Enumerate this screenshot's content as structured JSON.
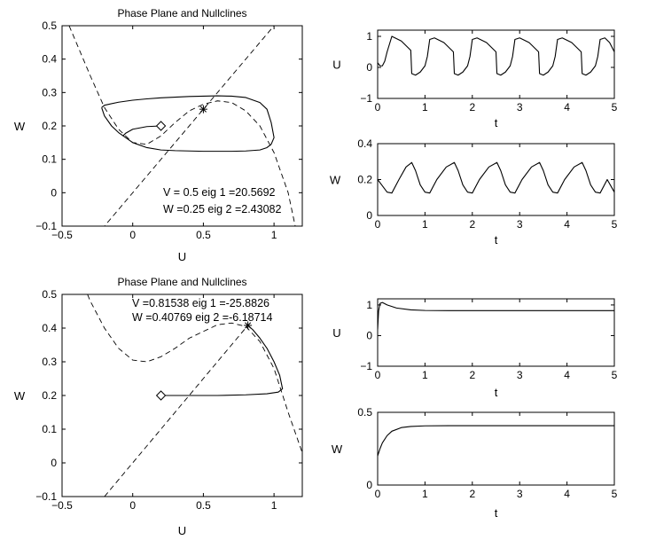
{
  "chart_data": [
    {
      "type": "line",
      "panel": "phase-top",
      "title": "Phase Plane and Nullclines",
      "xlabel": "U",
      "ylabel": "W",
      "xlim": [
        -0.5,
        1.2
      ],
      "ylim": [
        -0.1,
        0.5
      ],
      "xticks": [
        -0.5,
        0,
        0.5,
        1
      ],
      "yticks": [
        -0.1,
        0,
        0.1,
        0.2,
        0.3,
        0.4,
        0.5
      ],
      "annotation": [
        "V = 0.5  eig 1 =20.5692",
        "W =0.25  eig 2 =2.43082"
      ],
      "equilibrium": [
        0.5,
        0.25
      ],
      "start": [
        0.2,
        0.2
      ],
      "series": [
        {
          "style": "dashed",
          "x": [
            -0.45,
            -0.4,
            -0.3,
            -0.2,
            -0.1,
            0.0,
            0.1,
            0.2,
            0.3,
            0.4,
            0.5,
            0.6,
            0.7,
            0.8,
            0.9,
            1.0,
            1.1,
            1.15
          ],
          "y": [
            0.5,
            0.45,
            0.35,
            0.255,
            0.19,
            0.15,
            0.145,
            0.17,
            0.21,
            0.245,
            0.265,
            0.275,
            0.27,
            0.245,
            0.2,
            0.12,
            0.0,
            -0.1
          ]
        },
        {
          "style": "dashed",
          "x": [
            -0.22,
            1.0
          ],
          "y": [
            -0.11,
            0.5
          ]
        },
        {
          "style": "solid",
          "x": [
            -0.22,
            -0.2,
            -0.1,
            0.0,
            0.1,
            0.2,
            0.3,
            0.4,
            0.5,
            0.6,
            0.7,
            0.8,
            0.9,
            0.95,
            0.98,
            1.0,
            0.98,
            0.95,
            0.9,
            0.8,
            0.7,
            0.6,
            0.5,
            0.4,
            0.3,
            0.2,
            0.1,
            0.0,
            -0.1,
            -0.15,
            -0.2,
            -0.22
          ],
          "y": [
            0.255,
            0.262,
            0.271,
            0.277,
            0.281,
            0.284,
            0.286,
            0.288,
            0.289,
            0.29,
            0.289,
            0.285,
            0.27,
            0.25,
            0.21,
            0.165,
            0.145,
            0.135,
            0.128,
            0.125,
            0.124,
            0.124,
            0.124,
            0.125,
            0.126,
            0.128,
            0.135,
            0.15,
            0.18,
            0.2,
            0.23,
            0.255
          ]
        },
        {
          "style": "solid",
          "x": [
            0.2,
            0.1,
            0.0,
            -0.05,
            -0.07
          ],
          "y": [
            0.2,
            0.198,
            0.19,
            0.178,
            0.17
          ]
        }
      ]
    },
    {
      "type": "line",
      "panel": "u-top",
      "xlabel": "t",
      "ylabel": "U",
      "xlim": [
        0,
        5
      ],
      "ylim": [
        -1,
        1.2
      ],
      "xticks": [
        0,
        1,
        2,
        3,
        4,
        5
      ],
      "yticks": [
        -1,
        0,
        1
      ],
      "series": [
        {
          "style": "solid",
          "x": [
            0,
            0.05,
            0.1,
            0.15,
            0.2,
            0.3,
            0.5,
            0.7,
            0.72,
            0.8,
            0.9,
            1.0,
            1.05,
            1.1,
            1.2,
            1.4,
            1.6,
            1.62,
            1.7,
            1.8,
            1.9,
            1.95,
            2.0,
            2.1,
            2.3,
            2.5,
            2.52,
            2.6,
            2.7,
            2.8,
            2.85,
            2.9,
            3.0,
            3.2,
            3.4,
            3.42,
            3.5,
            3.6,
            3.7,
            3.75,
            3.8,
            3.9,
            4.1,
            4.3,
            4.32,
            4.4,
            4.5,
            4.6,
            4.65,
            4.7,
            4.8,
            4.9,
            5.0
          ],
          "y": [
            0.15,
            0.05,
            0.05,
            0.2,
            0.5,
            1.0,
            0.85,
            0.55,
            -0.2,
            -0.25,
            -0.15,
            0.05,
            0.35,
            0.9,
            0.95,
            0.8,
            0.5,
            -0.2,
            -0.25,
            -0.15,
            0.05,
            0.35,
            0.9,
            0.95,
            0.8,
            0.5,
            -0.2,
            -0.25,
            -0.15,
            0.05,
            0.35,
            0.9,
            0.95,
            0.8,
            0.5,
            -0.2,
            -0.25,
            -0.15,
            0.05,
            0.35,
            0.9,
            0.95,
            0.8,
            0.5,
            -0.2,
            -0.25,
            -0.15,
            0.05,
            0.35,
            0.9,
            0.95,
            0.8,
            0.5
          ]
        }
      ]
    },
    {
      "type": "line",
      "panel": "w-top",
      "xlabel": "t",
      "ylabel": "W",
      "xlim": [
        0,
        5
      ],
      "ylim": [
        0,
        0.4
      ],
      "xticks": [
        0,
        1,
        2,
        3,
        4,
        5
      ],
      "yticks": [
        0,
        0.2,
        0.4
      ],
      "series": [
        {
          "style": "solid",
          "x": [
            0,
            0.1,
            0.2,
            0.3,
            0.45,
            0.6,
            0.72,
            0.8,
            0.9,
            1.0,
            1.1,
            1.25,
            1.45,
            1.62,
            1.7,
            1.8,
            1.9,
            2.0,
            2.15,
            2.35,
            2.52,
            2.6,
            2.7,
            2.8,
            2.9,
            3.05,
            3.25,
            3.42,
            3.5,
            3.6,
            3.7,
            3.8,
            3.95,
            4.15,
            4.32,
            4.4,
            4.5,
            4.6,
            4.7,
            4.85,
            5.0
          ],
          "y": [
            0.2,
            0.165,
            0.13,
            0.125,
            0.2,
            0.27,
            0.295,
            0.25,
            0.17,
            0.13,
            0.125,
            0.2,
            0.27,
            0.295,
            0.25,
            0.17,
            0.13,
            0.125,
            0.2,
            0.27,
            0.295,
            0.25,
            0.17,
            0.13,
            0.125,
            0.2,
            0.27,
            0.295,
            0.25,
            0.17,
            0.13,
            0.125,
            0.2,
            0.27,
            0.295,
            0.25,
            0.17,
            0.13,
            0.125,
            0.2,
            0.13
          ]
        }
      ]
    },
    {
      "type": "line",
      "panel": "phase-bottom",
      "title": "Phase Plane and Nullclines",
      "xlabel": "U",
      "ylabel": "W",
      "xlim": [
        -0.5,
        1.2
      ],
      "ylim": [
        -0.1,
        0.5
      ],
      "xticks": [
        -0.5,
        0,
        0.5,
        1
      ],
      "yticks": [
        -0.1,
        0,
        0.1,
        0.2,
        0.3,
        0.4,
        0.5
      ],
      "annotation": [
        "V =0.81538  eig 1 =-25.8826",
        "W =0.40769  eig 2 =-6.18714"
      ],
      "equilibrium": [
        0.815,
        0.408
      ],
      "start": [
        0.2,
        0.2
      ],
      "series": [
        {
          "style": "dashed",
          "x": [
            -0.32,
            -0.3,
            -0.2,
            -0.1,
            0.0,
            0.1,
            0.2,
            0.3,
            0.4,
            0.5,
            0.6,
            0.7,
            0.8,
            0.9,
            1.0,
            1.1,
            1.2
          ],
          "y": [
            0.5,
            0.48,
            0.4,
            0.34,
            0.305,
            0.3,
            0.315,
            0.34,
            0.37,
            0.39,
            0.41,
            0.415,
            0.405,
            0.36,
            0.28,
            0.15,
            0.03
          ]
        },
        {
          "style": "dashed",
          "x": [
            -0.2,
            0.815
          ],
          "y": [
            -0.1,
            0.408
          ]
        },
        {
          "style": "solid",
          "x": [
            0.2,
            0.4,
            0.6,
            0.8,
            0.95,
            1.03,
            1.06,
            1.04,
            1.0,
            0.95,
            0.9,
            0.85,
            0.815
          ],
          "y": [
            0.2,
            0.2,
            0.2,
            0.202,
            0.205,
            0.21,
            0.22,
            0.26,
            0.3,
            0.34,
            0.37,
            0.395,
            0.408
          ]
        }
      ]
    },
    {
      "type": "line",
      "panel": "u-bottom",
      "xlabel": "t",
      "ylabel": "U",
      "xlim": [
        0,
        5
      ],
      "ylim": [
        -1,
        1.2
      ],
      "xticks": [
        0,
        1,
        2,
        3,
        4,
        5
      ],
      "yticks": [
        -1,
        0,
        1
      ],
      "series": [
        {
          "style": "solid",
          "x": [
            0,
            0.02,
            0.05,
            0.1,
            0.2,
            0.4,
            0.7,
            1.0,
            1.5,
            2.0,
            3.0,
            4.0,
            5.0
          ],
          "y": [
            0.2,
            0.8,
            1.05,
            1.08,
            1.0,
            0.9,
            0.84,
            0.82,
            0.815,
            0.815,
            0.815,
            0.815,
            0.815
          ]
        }
      ]
    },
    {
      "type": "line",
      "panel": "w-bottom",
      "xlabel": "t",
      "ylabel": "W",
      "xlim": [
        0,
        5
      ],
      "ylim": [
        0,
        0.5
      ],
      "xticks": [
        0,
        1,
        2,
        3,
        4,
        5
      ],
      "yticks": [
        0,
        0.5
      ],
      "series": [
        {
          "style": "solid",
          "x": [
            0,
            0.05,
            0.1,
            0.2,
            0.3,
            0.5,
            0.7,
            1.0,
            1.5,
            2.0,
            3.0,
            4.0,
            5.0
          ],
          "y": [
            0.2,
            0.25,
            0.29,
            0.34,
            0.37,
            0.395,
            0.403,
            0.407,
            0.408,
            0.408,
            0.408,
            0.408,
            0.408
          ]
        }
      ]
    }
  ]
}
